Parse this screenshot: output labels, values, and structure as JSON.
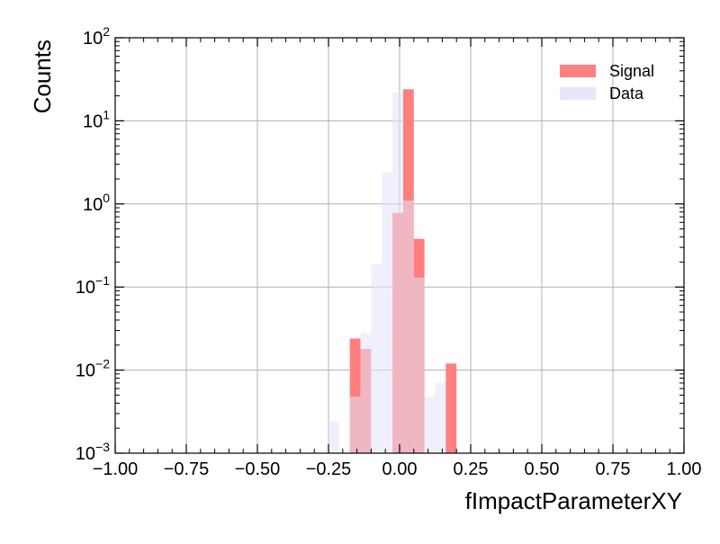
{
  "chart_data": {
    "type": "histogram",
    "xlabel": "fImpactParameterXY",
    "ylabel": "Counts",
    "xlim": [
      -1.0,
      1.0
    ],
    "ylim": [
      0.001,
      100
    ],
    "yscale": "log",
    "grid": true,
    "legend_position": "top-right",
    "x_ticks": [
      "−1.00",
      "−0.75",
      "−0.50",
      "−0.25",
      "0.00",
      "0.25",
      "0.50",
      "0.75",
      "1.00"
    ],
    "x_tick_values": [
      -1.0,
      -0.75,
      -0.5,
      -0.25,
      0.0,
      0.25,
      0.5,
      0.75,
      1.0
    ],
    "y_tick_exponents": [
      "−3",
      "−2",
      "−1",
      "0",
      "1",
      "2"
    ],
    "bin_edges": [
      -0.25,
      -0.2125,
      -0.175,
      -0.1375,
      -0.1,
      -0.0625,
      -0.025,
      0.0125,
      0.05,
      0.0875,
      0.125,
      0.1625,
      0.2
    ],
    "series": [
      {
        "name": "Signal",
        "color": "#ff7f7f",
        "values": [
          0.001,
          0.001,
          0.024,
          0.018,
          0.001,
          0.001,
          0.78,
          24.0,
          0.38,
          0.001,
          0.001,
          0.012
        ]
      },
      {
        "name": "Data",
        "color": "#e3e3fa",
        "values": [
          0.0024,
          0.001,
          0.0048,
          0.028,
          0.19,
          2.4,
          22.0,
          1.1,
          0.13,
          0.0048,
          0.007,
          0.001
        ]
      }
    ]
  }
}
